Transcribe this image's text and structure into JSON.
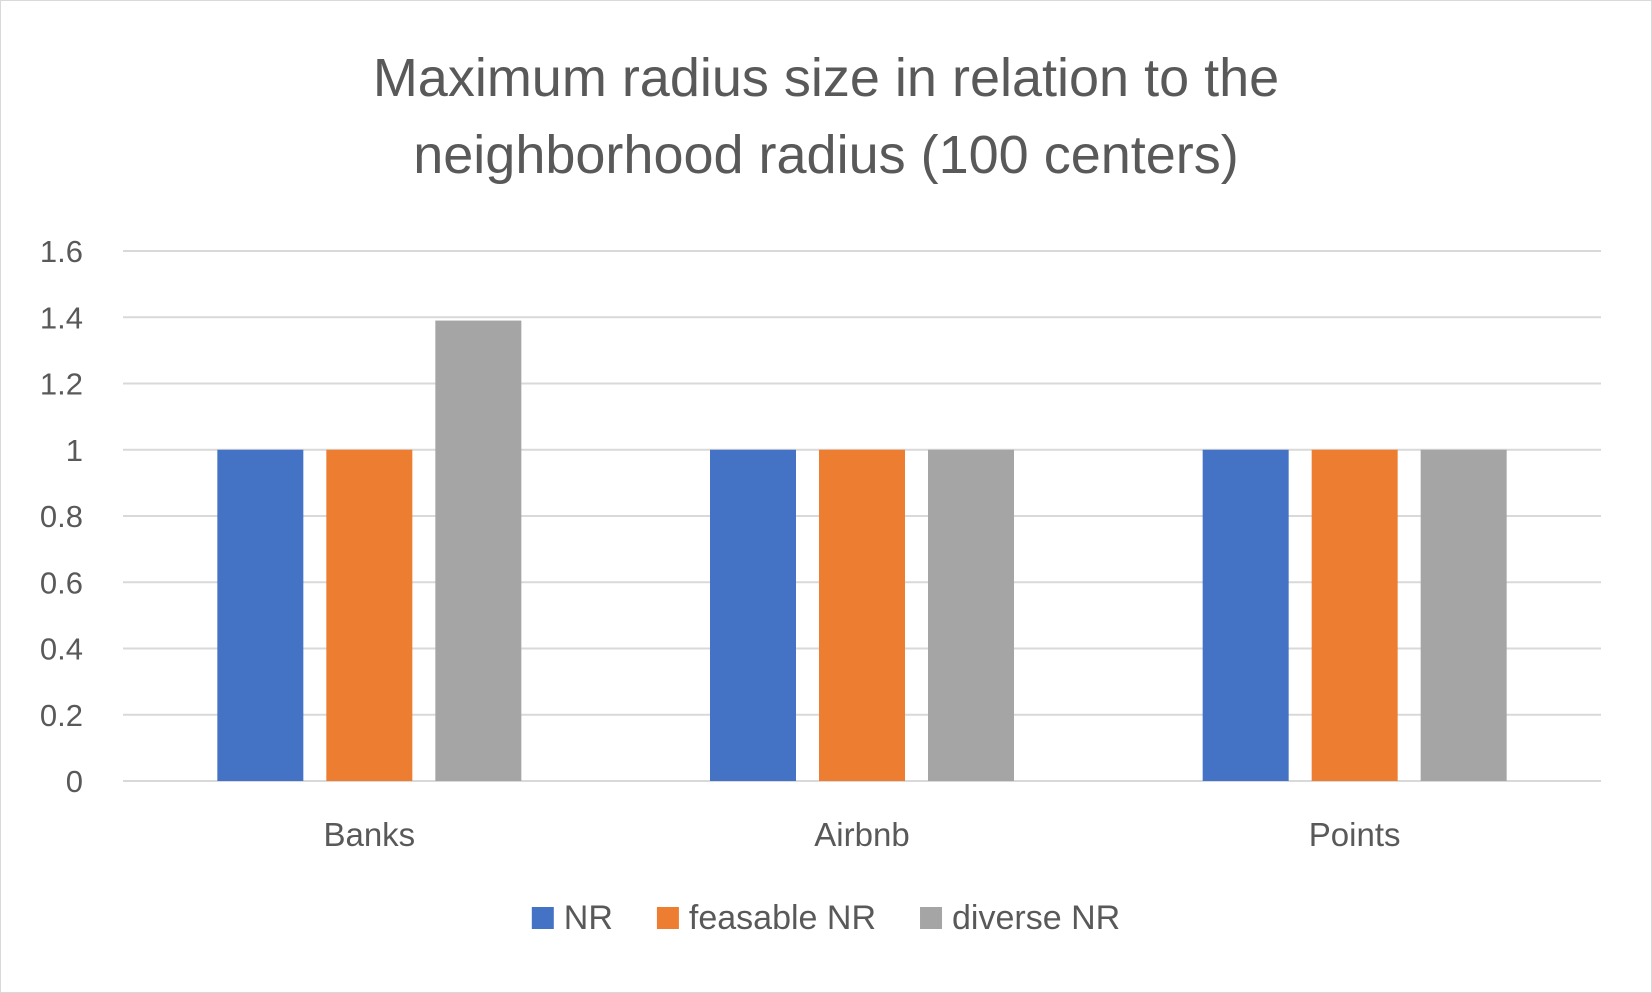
{
  "chart_data": {
    "type": "bar",
    "title_lines": [
      "Maximum radius size in relation to the",
      "neighborhood radius (100 centers)"
    ],
    "categories": [
      "Banks",
      "Airbnb",
      "Points"
    ],
    "series": [
      {
        "name": "NR",
        "color": "#4472c4",
        "values": [
          1,
          1,
          1
        ]
      },
      {
        "name": "feasable NR",
        "color": "#ed7d31",
        "values": [
          1,
          1,
          1
        ]
      },
      {
        "name": "diverse NR",
        "color": "#a5a5a5",
        "values": [
          1.39,
          1,
          1
        ]
      }
    ],
    "y_ticks": [
      "0",
      "0.2",
      "0.4",
      "0.6",
      "0.8",
      "1",
      "1.2",
      "1.4",
      "1.6"
    ],
    "ylim": [
      0,
      1.6
    ],
    "grid": true,
    "legend_position": "bottom",
    "gridline_color": "#d9d9d9"
  }
}
